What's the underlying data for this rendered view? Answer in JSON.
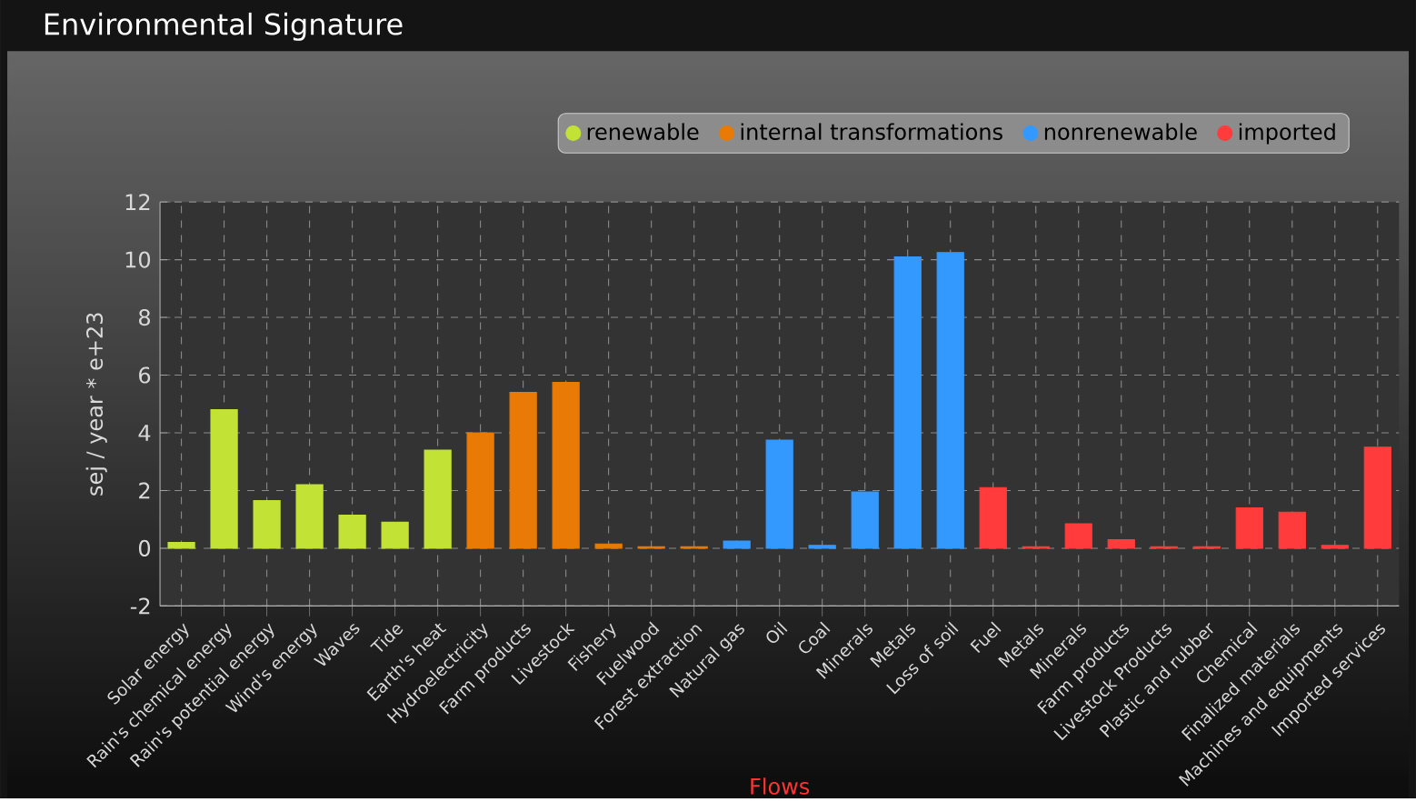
{
  "chart_data": {
    "type": "bar",
    "title": "Environmental Signature",
    "xlabel": "Flows",
    "ylabel": "sej / year * e+23",
    "categories": [
      "Solar energy",
      "Rain's chemical energy",
      "Rain's potential energy",
      "Wind's energy",
      "Waves",
      "Tide",
      "Earth's heat",
      "Hydroelectricity",
      "Farm products",
      "Livestock",
      "Fishery",
      "Fuelwood",
      "Forest extraction",
      "Natural gas",
      "Oil",
      "Coal",
      "Minerals",
      "Metals",
      "Loss of soil",
      "Fuel",
      "Metals",
      "Minerals",
      "Farm products",
      "Livestock Products",
      "Plastic and rubber",
      "Chemical",
      "Finalized materials",
      "Machines and equipments",
      "Imported services"
    ],
    "series": [
      {
        "name": "renewable",
        "color": "#c2e236",
        "values": [
          0.2,
          4.8,
          1.65,
          2.2,
          1.15,
          0.9,
          3.4,
          null,
          null,
          null,
          null,
          null,
          null,
          null,
          null,
          null,
          null,
          null,
          null,
          null,
          null,
          null,
          null,
          null,
          null,
          null,
          null,
          null,
          null
        ]
      },
      {
        "name": "internal transformations",
        "color": "#e87a05",
        "values": [
          null,
          null,
          null,
          null,
          null,
          null,
          null,
          4.0,
          5.4,
          5.75,
          0.15,
          0.05,
          0.05,
          null,
          null,
          null,
          null,
          null,
          null,
          null,
          null,
          null,
          null,
          null,
          null,
          null,
          null,
          null,
          null
        ]
      },
      {
        "name": "nonrenewable",
        "color": "#3399ff",
        "values": [
          null,
          null,
          null,
          null,
          null,
          null,
          null,
          null,
          null,
          null,
          null,
          null,
          null,
          0.25,
          3.75,
          0.1,
          1.95,
          10.1,
          10.25,
          null,
          null,
          null,
          null,
          null,
          null,
          null,
          null,
          null,
          null
        ]
      },
      {
        "name": "imported",
        "color": "#ff3b3b",
        "values": [
          null,
          null,
          null,
          null,
          null,
          null,
          null,
          null,
          null,
          null,
          null,
          null,
          null,
          null,
          null,
          null,
          null,
          null,
          null,
          2.1,
          0.05,
          0.85,
          0.3,
          0.05,
          0.05,
          1.4,
          1.25,
          0.1,
          3.5
        ]
      }
    ],
    "ylim": [
      -2,
      12
    ],
    "yticks": [
      -2,
      0,
      2,
      4,
      6,
      8,
      10,
      12
    ],
    "grid": true,
    "legend": "top right"
  }
}
